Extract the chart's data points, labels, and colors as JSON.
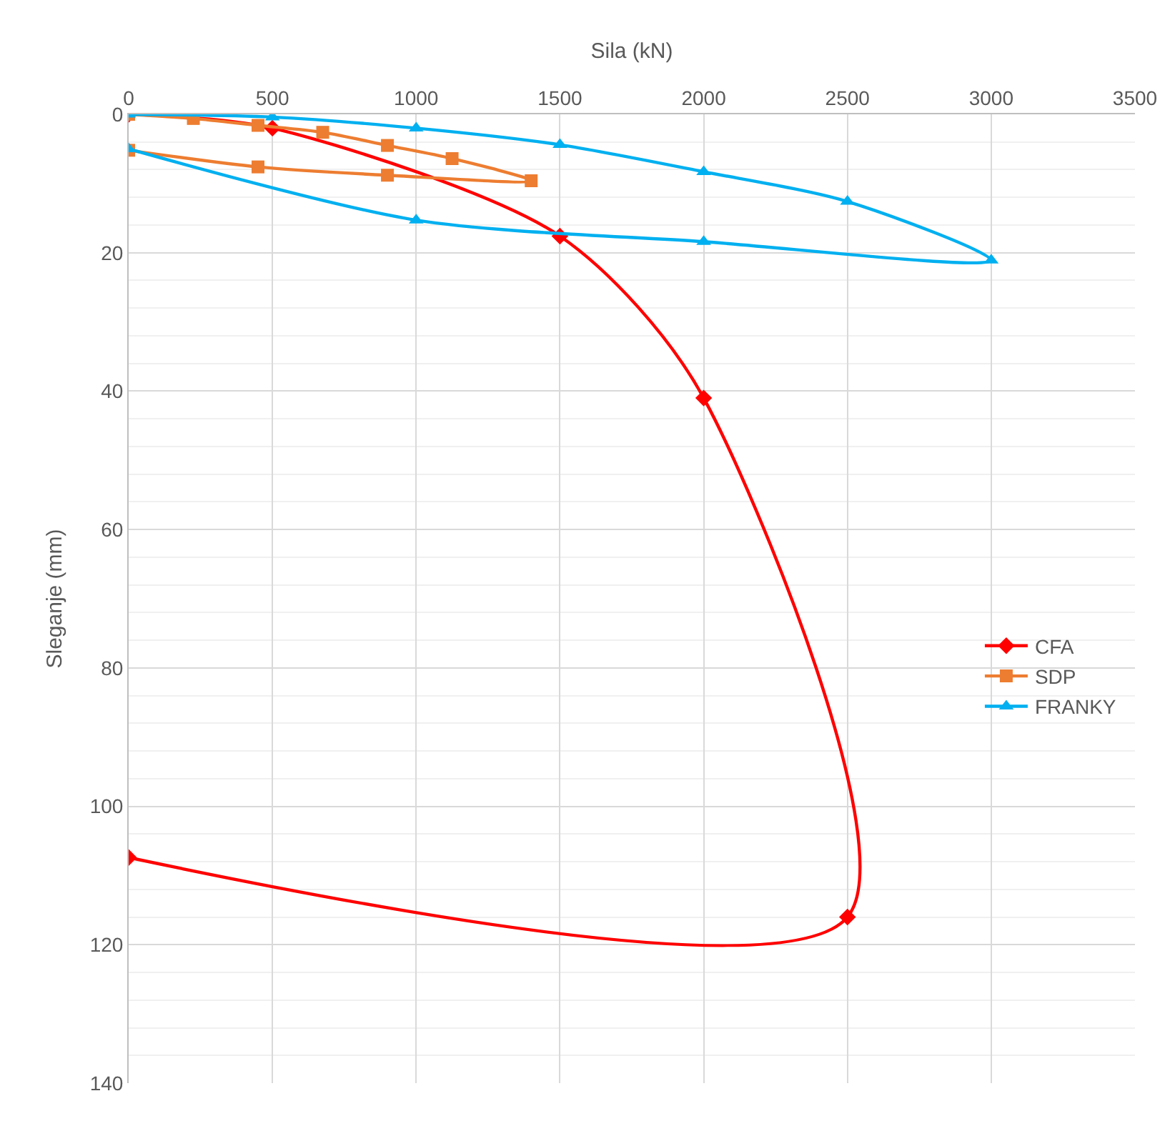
{
  "chart_data": {
    "type": "line",
    "xlabel": "Sila (kN)",
    "ylabel": "Sleganje (mm)",
    "xlim": [
      0,
      3500
    ],
    "xticks": [
      0,
      500,
      1000,
      1500,
      2000,
      2500,
      3000,
      3500
    ],
    "ylim": [
      140,
      0
    ],
    "yticks": [
      0,
      20,
      40,
      60,
      80,
      100,
      120,
      140
    ],
    "grid": true,
    "legend": "right",
    "line_style": "solid",
    "series": [
      {
        "name": "CFA",
        "color": "#ff0000",
        "marker": "diamond",
        "x": [
          0,
          500,
          1500,
          2000,
          2500,
          0
        ],
        "values": [
          0,
          2,
          17.6,
          41,
          116,
          107.4
        ]
      },
      {
        "name": "SDP",
        "color": "#ed7d31",
        "marker": "square",
        "x": [
          0,
          225,
          450,
          675,
          900,
          1125,
          1400,
          900,
          450,
          0
        ],
        "values": [
          0,
          0.6,
          1.6,
          2.6,
          4.5,
          6.4,
          9.6,
          8.8,
          7.6,
          5.2
        ]
      },
      {
        "name": "FRANKY",
        "color": "#00b0f0",
        "marker": "triangle",
        "x": [
          0,
          500,
          1000,
          1500,
          2000,
          2500,
          3000,
          2000,
          1000,
          0
        ],
        "values": [
          0,
          0.4,
          2,
          4.4,
          8.3,
          12.6,
          21.1,
          18.4,
          15.3,
          5
        ]
      }
    ]
  }
}
